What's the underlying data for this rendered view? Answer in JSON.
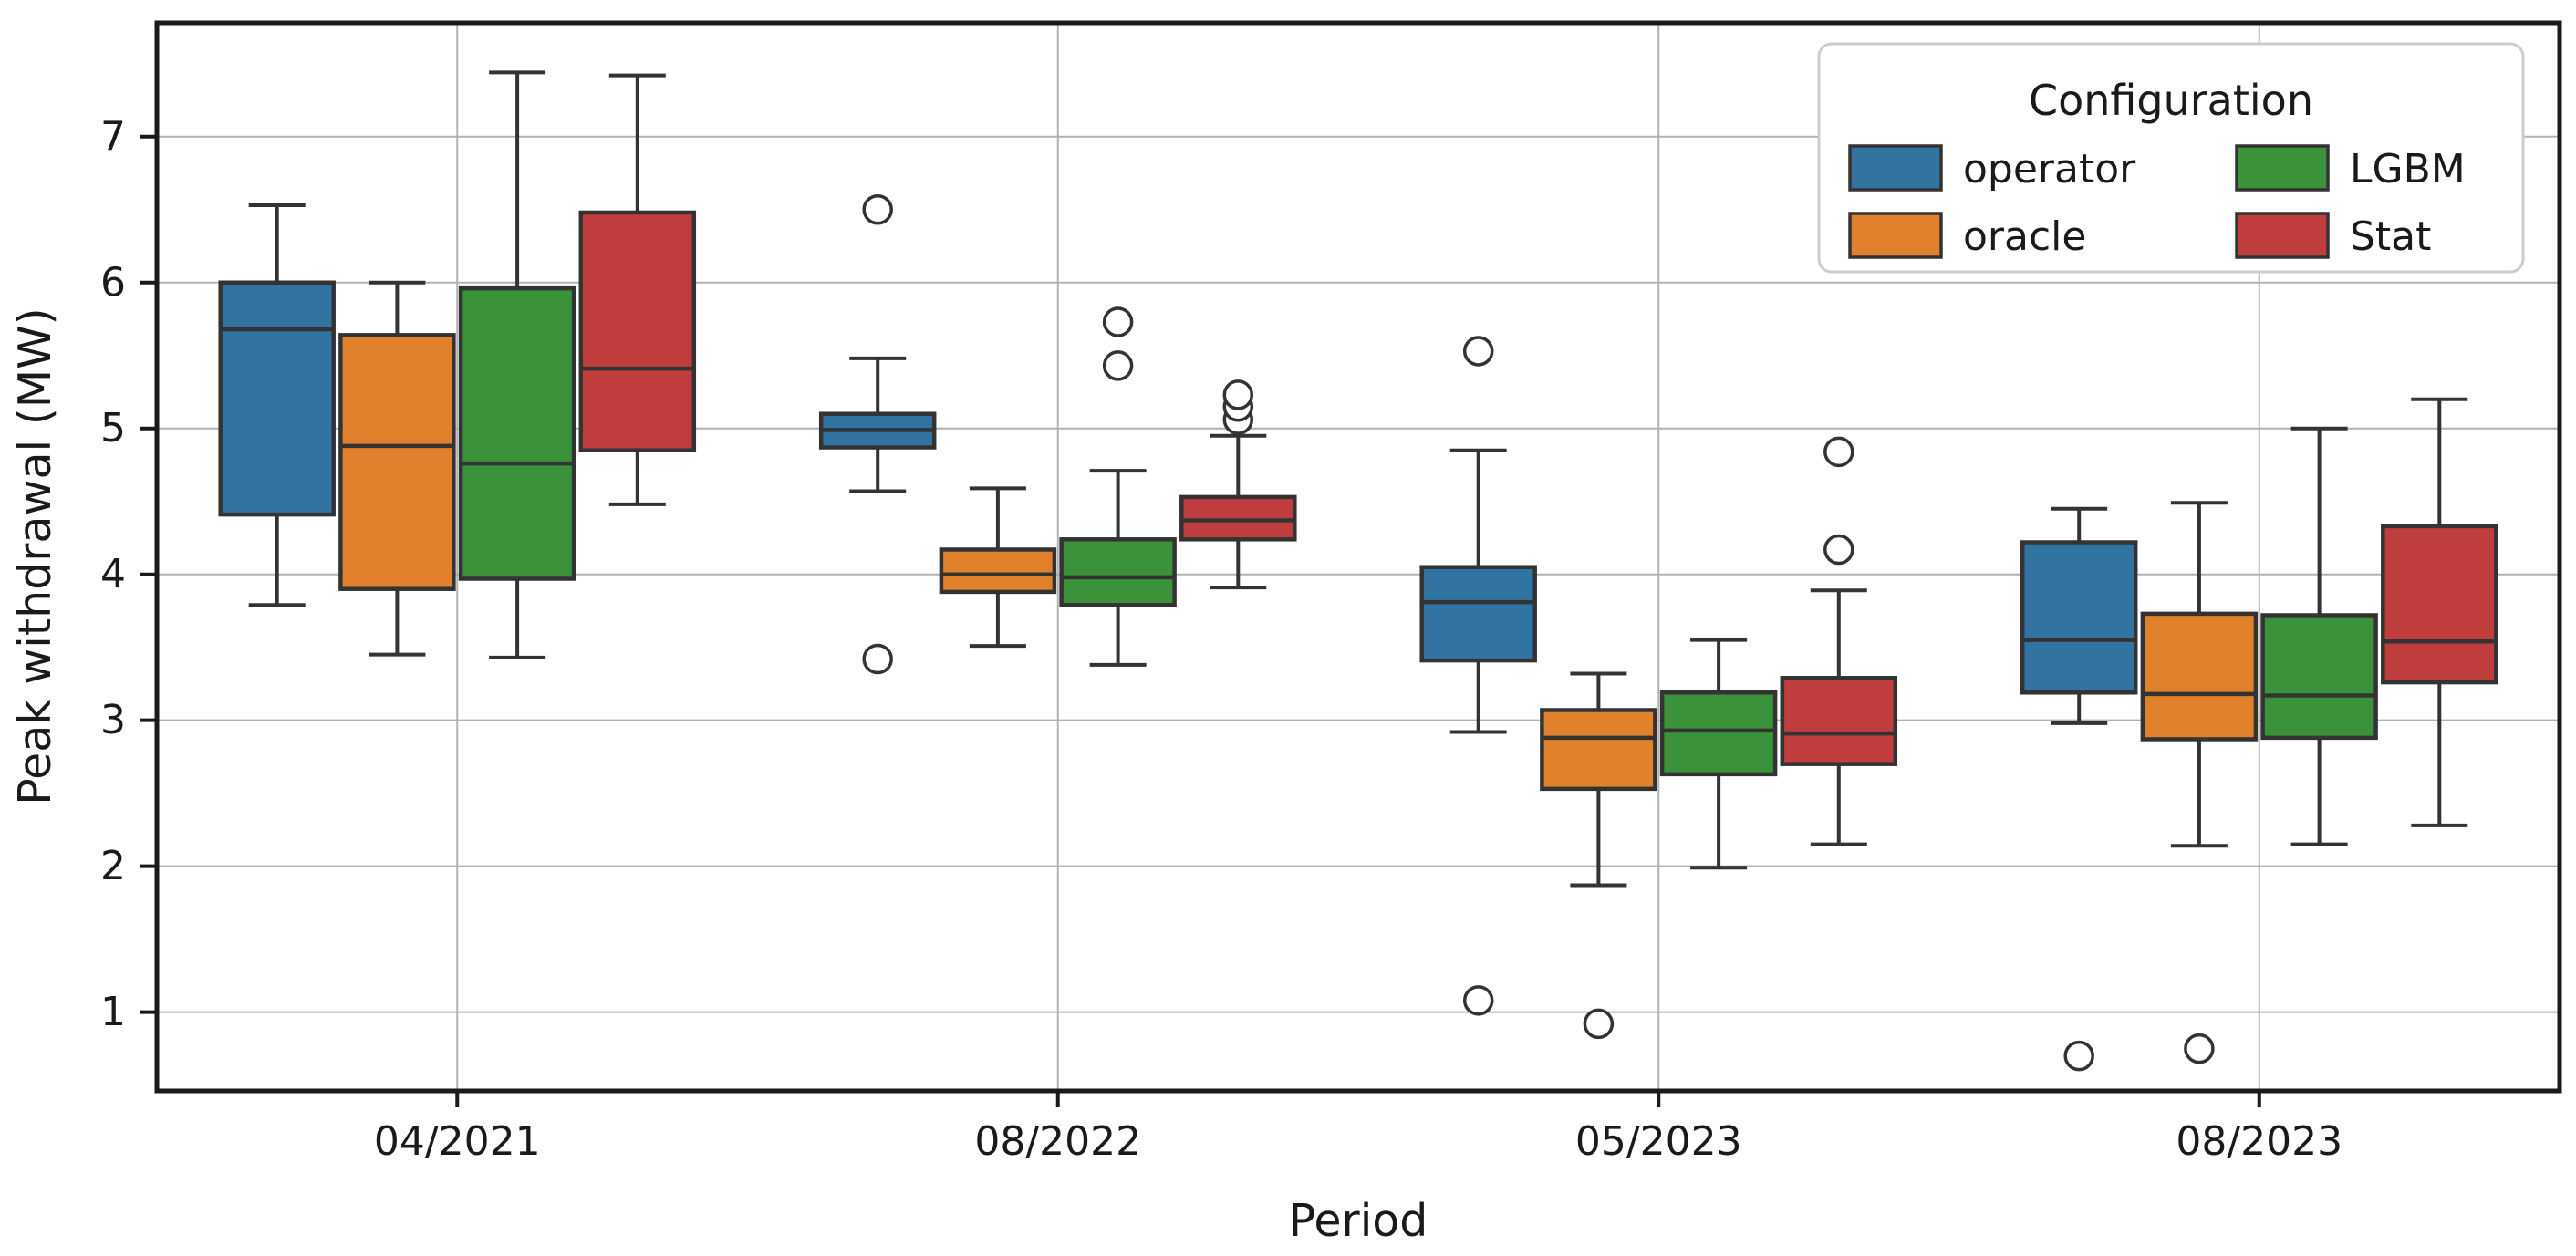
{
  "chart_data": {
    "type": "boxplot",
    "title": "",
    "xlabel": "Period",
    "ylabel": "Peak withdrawal (MW)",
    "categories": [
      "04/2021",
      "08/2022",
      "05/2023",
      "08/2023"
    ],
    "yticks": [
      1,
      2,
      3,
      4,
      5,
      6,
      7
    ],
    "ylim": [
      0.46,
      7.78
    ],
    "grid": true,
    "legend_title": "Configuration",
    "legend_position": "upper right",
    "legend_columns": 2,
    "style": {
      "box_edge_color": "#333333",
      "grid_color": "#b2b2b2",
      "spine_color": "#1a1a1a",
      "flier_face_color": "#ffffff",
      "background_color": "#ffffff"
    },
    "series": [
      {
        "name": "operator",
        "color": "#3274a1",
        "boxes": [
          {
            "whislo": 3.79,
            "q1": 4.41,
            "med": 5.68,
            "q3": 6.0,
            "whishi": 6.53,
            "fliers": []
          },
          {
            "whislo": 4.57,
            "q1": 4.87,
            "med": 4.99,
            "q3": 5.1,
            "whishi": 5.48,
            "fliers": [
              6.5,
              3.42
            ]
          },
          {
            "whislo": 2.92,
            "q1": 3.41,
            "med": 3.81,
            "q3": 4.05,
            "whishi": 4.85,
            "fliers": [
              5.53,
              1.08
            ]
          },
          {
            "whislo": 2.98,
            "q1": 3.19,
            "med": 3.55,
            "q3": 4.22,
            "whishi": 4.45,
            "fliers": [
              0.7
            ]
          }
        ]
      },
      {
        "name": "oracle",
        "color": "#e1812c",
        "boxes": [
          {
            "whislo": 3.45,
            "q1": 3.9,
            "med": 4.88,
            "q3": 5.64,
            "whishi": 6.0,
            "fliers": []
          },
          {
            "whislo": 3.51,
            "q1": 3.88,
            "med": 4.0,
            "q3": 4.17,
            "whishi": 4.59,
            "fliers": []
          },
          {
            "whislo": 1.87,
            "q1": 2.53,
            "med": 2.88,
            "q3": 3.07,
            "whishi": 3.32,
            "fliers": [
              0.92
            ]
          },
          {
            "whislo": 2.14,
            "q1": 2.87,
            "med": 3.18,
            "q3": 3.73,
            "whishi": 4.49,
            "fliers": [
              0.75
            ]
          }
        ]
      },
      {
        "name": "LGBM",
        "color": "#3a923a",
        "boxes": [
          {
            "whislo": 3.43,
            "q1": 3.97,
            "med": 4.76,
            "q3": 5.96,
            "whishi": 7.44,
            "fliers": []
          },
          {
            "whislo": 3.38,
            "q1": 3.79,
            "med": 3.98,
            "q3": 4.24,
            "whishi": 4.71,
            "fliers": [
              5.73,
              5.43
            ]
          },
          {
            "whislo": 1.99,
            "q1": 2.63,
            "med": 2.93,
            "q3": 3.19,
            "whishi": 3.55,
            "fliers": []
          },
          {
            "whislo": 2.15,
            "q1": 2.88,
            "med": 3.17,
            "q3": 3.72,
            "whishi": 5.0,
            "fliers": []
          }
        ]
      },
      {
        "name": "Stat",
        "color": "#c03d3e",
        "boxes": [
          {
            "whislo": 4.48,
            "q1": 4.85,
            "med": 5.41,
            "q3": 6.48,
            "whishi": 7.42,
            "fliers": []
          },
          {
            "whislo": 3.91,
            "q1": 4.24,
            "med": 4.37,
            "q3": 4.53,
            "whishi": 4.95,
            "fliers": [
              5.06,
              5.15,
              5.23
            ]
          },
          {
            "whislo": 2.15,
            "q1": 2.7,
            "med": 2.91,
            "q3": 3.29,
            "whishi": 3.89,
            "fliers": [
              4.84,
              4.17
            ]
          },
          {
            "whislo": 2.28,
            "q1": 3.26,
            "med": 3.54,
            "q3": 4.33,
            "whishi": 5.2,
            "fliers": []
          }
        ]
      }
    ]
  }
}
